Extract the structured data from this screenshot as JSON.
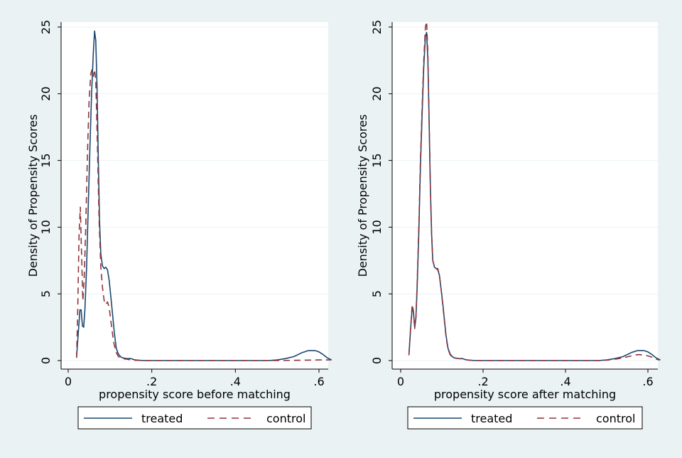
{
  "figure": {
    "background_color": "#eaf2f3",
    "plot_background_color": "#ffffff",
    "gridline_color": "#eaf2f3"
  },
  "chart_data": [
    {
      "type": "line",
      "panel": "left",
      "ylabel": "Density of Propensity Scores",
      "xlabel": "propensity score before matching",
      "xlim": [
        -0.015,
        0.665
      ],
      "ylim": [
        -0.6,
        26.3
      ],
      "xticks": [
        0,
        0.2,
        0.4,
        0.6
      ],
      "xtick_labels": [
        "0",
        ".2",
        ".4",
        ".6"
      ],
      "yticks": [
        0,
        5,
        10,
        15,
        20,
        25
      ],
      "ytick_labels": [
        "0",
        "5",
        "10",
        "15",
        "20",
        "25"
      ],
      "grid": true,
      "legend_position": "bottom",
      "series": [
        {
          "name": "treated",
          "color": "#1a476f",
          "dash": "solid",
          "x": [
            0.02,
            0.024,
            0.028,
            0.031,
            0.034,
            0.037,
            0.04,
            0.044,
            0.048,
            0.052,
            0.056,
            0.06,
            0.063,
            0.066,
            0.069,
            0.072,
            0.075,
            0.078,
            0.082,
            0.086,
            0.09,
            0.094,
            0.098,
            0.102,
            0.106,
            0.11,
            0.115,
            0.12,
            0.125,
            0.13,
            0.14,
            0.15,
            0.16,
            0.17,
            0.18,
            0.2,
            0.3,
            0.4,
            0.48,
            0.5,
            0.52,
            0.54,
            0.56,
            0.575,
            0.59,
            0.6,
            0.61,
            0.62,
            0.63
          ],
          "y": [
            0.3,
            2.0,
            3.8,
            3.8,
            2.6,
            2.5,
            3.8,
            7.0,
            11.5,
            16.0,
            20.0,
            23.0,
            24.7,
            24.0,
            20.5,
            15.0,
            10.5,
            8.0,
            7.1,
            6.9,
            7.0,
            6.8,
            6.0,
            4.8,
            3.5,
            2.2,
            0.9,
            0.5,
            0.3,
            0.2,
            0.15,
            0.15,
            0.05,
            0.02,
            0,
            0,
            0,
            0,
            0,
            0.05,
            0.15,
            0.3,
            0.6,
            0.75,
            0.75,
            0.65,
            0.45,
            0.2,
            0.05
          ]
        },
        {
          "name": "control",
          "color": "#90353b",
          "dash": "dashed",
          "x": [
            0.02,
            0.023,
            0.026,
            0.029,
            0.032,
            0.035,
            0.038,
            0.042,
            0.046,
            0.05,
            0.054,
            0.057,
            0.06,
            0.063,
            0.066,
            0.07,
            0.074,
            0.078,
            0.082,
            0.086,
            0.09,
            0.094,
            0.098,
            0.102,
            0.106,
            0.11,
            0.115,
            0.12,
            0.13,
            0.14,
            0.15,
            0.16,
            0.18,
            0.2,
            0.3,
            0.4,
            0.5,
            0.55,
            0.6,
            0.63
          ],
          "y": [
            0.2,
            4.0,
            9.5,
            11.5,
            8.0,
            4.5,
            6.0,
            10.0,
            15.5,
            19.5,
            21.5,
            21.8,
            21.3,
            21.8,
            21.0,
            16.0,
            10.5,
            7.0,
            5.5,
            4.5,
            4.2,
            4.4,
            4.0,
            3.0,
            2.0,
            1.2,
            0.6,
            0.3,
            0.15,
            0.1,
            0.05,
            0.02,
            0,
            0,
            0,
            0,
            0,
            0.02,
            0.05,
            0.05
          ]
        }
      ]
    },
    {
      "type": "line",
      "panel": "right",
      "ylabel": "Density of Propensity Scores",
      "xlabel": "propensity score after matching",
      "xlim": [
        -0.015,
        0.665
      ],
      "ylim": [
        -0.6,
        26.3
      ],
      "xticks": [
        0,
        0.2,
        0.4,
        0.6
      ],
      "xtick_labels": [
        "0",
        ".2",
        ".4",
        ".6"
      ],
      "yticks": [
        0,
        5,
        10,
        15,
        20,
        25
      ],
      "ytick_labels": [
        "0",
        "5",
        "10",
        "15",
        "20",
        "25"
      ],
      "grid": true,
      "legend_position": "bottom",
      "series": [
        {
          "name": "treated",
          "color": "#1a476f",
          "dash": "solid",
          "x": [
            0.02,
            0.024,
            0.028,
            0.031,
            0.034,
            0.037,
            0.04,
            0.044,
            0.048,
            0.052,
            0.056,
            0.06,
            0.063,
            0.066,
            0.069,
            0.072,
            0.075,
            0.078,
            0.082,
            0.086,
            0.09,
            0.094,
            0.098,
            0.102,
            0.106,
            0.11,
            0.115,
            0.12,
            0.125,
            0.13,
            0.14,
            0.15,
            0.16,
            0.17,
            0.18,
            0.2,
            0.3,
            0.4,
            0.48,
            0.5,
            0.52,
            0.54,
            0.56,
            0.575,
            0.59,
            0.6,
            0.61,
            0.62,
            0.63
          ],
          "y": [
            0.4,
            2.3,
            4.0,
            3.6,
            2.5,
            3.2,
            5.5,
            9.5,
            14.5,
            18.5,
            22.0,
            24.3,
            24.6,
            22.5,
            18.0,
            13.0,
            9.5,
            7.5,
            7.0,
            6.9,
            6.8,
            6.4,
            5.4,
            4.3,
            3.1,
            1.9,
            0.9,
            0.5,
            0.3,
            0.2,
            0.15,
            0.15,
            0.05,
            0.02,
            0,
            0,
            0,
            0,
            0,
            0.05,
            0.15,
            0.3,
            0.6,
            0.75,
            0.75,
            0.65,
            0.45,
            0.2,
            0.05
          ]
        },
        {
          "name": "control",
          "color": "#90353b",
          "dash": "dashed",
          "x": [
            0.02,
            0.024,
            0.028,
            0.031,
            0.034,
            0.037,
            0.04,
            0.044,
            0.048,
            0.052,
            0.056,
            0.06,
            0.063,
            0.066,
            0.069,
            0.072,
            0.075,
            0.078,
            0.082,
            0.086,
            0.09,
            0.094,
            0.098,
            0.102,
            0.106,
            0.11,
            0.115,
            0.12,
            0.125,
            0.13,
            0.14,
            0.15,
            0.16,
            0.17,
            0.18,
            0.2,
            0.3,
            0.4,
            0.48,
            0.5,
            0.52,
            0.54,
            0.56,
            0.575,
            0.59,
            0.6,
            0.61,
            0.62,
            0.63
          ],
          "y": [
            0.4,
            2.4,
            4.2,
            3.7,
            2.4,
            3.3,
            5.8,
            10.0,
            15.0,
            19.0,
            22.5,
            25.0,
            25.4,
            23.0,
            18.2,
            13.0,
            9.6,
            7.5,
            7.0,
            6.9,
            6.9,
            6.4,
            5.4,
            4.2,
            3.0,
            1.8,
            0.85,
            0.45,
            0.25,
            0.2,
            0.15,
            0.12,
            0.05,
            0.02,
            0,
            0,
            0,
            0,
            0,
            0.03,
            0.1,
            0.2,
            0.35,
            0.45,
            0.42,
            0.35,
            0.25,
            0.1,
            0.03
          ]
        }
      ]
    }
  ]
}
